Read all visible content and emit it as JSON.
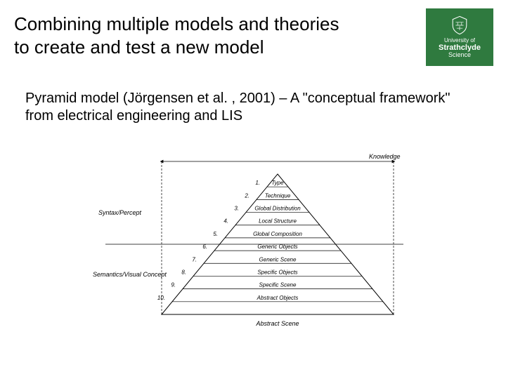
{
  "title": {
    "line1": "Combining multiple models and theories",
    "line2": "to create and test a new model"
  },
  "logo": {
    "bg_color": "#2f7a3f",
    "line1": "University of",
    "line2": "Strathclyde",
    "line3": "Science"
  },
  "body": {
    "text": "Pyramid model (Jörgensen et al. , 2001) – A \"conceptual framework\" from electrical engineering and LIS"
  },
  "pyramid": {
    "top_label": "Knowledge",
    "left_label_upper": "Syntax/Percept",
    "left_label_lower": "Semantics/Visual Concept",
    "levels": [
      {
        "n": "1.",
        "label": "Type"
      },
      {
        "n": "2.",
        "label": "Technique"
      },
      {
        "n": "3.",
        "label": "Global Distribution"
      },
      {
        "n": "4.",
        "label": "Local Structure"
      },
      {
        "n": "5.",
        "label": "Global Composition"
      },
      {
        "n": "6.",
        "label": "Generic Objects"
      },
      {
        "n": "7.",
        "label": "Generic Scene"
      },
      {
        "n": "8.",
        "label": "Specific Objects"
      },
      {
        "n": "9.",
        "label": "Specific Scene"
      },
      {
        "n": "10.",
        "label": "Abstract Objects"
      }
    ],
    "base_label": "Abstract Scene",
    "style": {
      "stroke": "#000000",
      "text_color": "#000000",
      "font_size_small": 8,
      "font_size_label": 9,
      "font_style": "italic",
      "dash": "3,2"
    }
  }
}
